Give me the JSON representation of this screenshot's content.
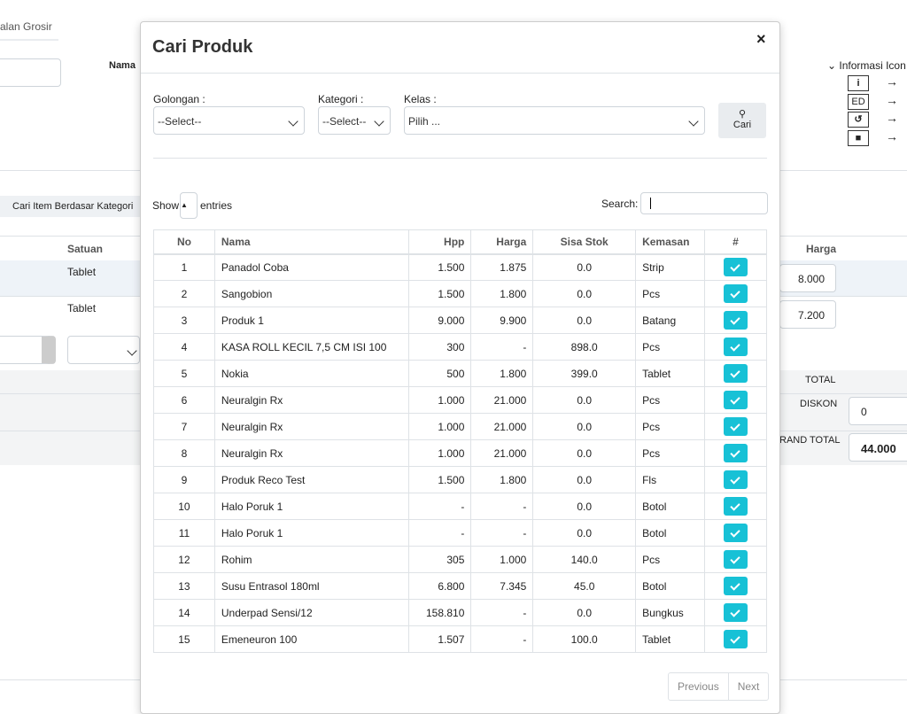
{
  "background": {
    "tab": "alan Grosir",
    "nama_label": "Nama",
    "info_title": "Informasi Icon",
    "icon_ed": "ED",
    "category_button": "Cari Item Berdasar Kategori",
    "columns": {
      "satuan": "Satuan",
      "harga": "Harga"
    },
    "rows": [
      {
        "satuan": "Tablet",
        "harga": "8.000"
      },
      {
        "satuan": "Tablet",
        "harga": "7.200"
      }
    ],
    "totals": {
      "total_label": "TOTAL",
      "diskon_label": "DISKON",
      "diskon_value": "0",
      "grand_total_label": "RAND TOTAL",
      "grand_total_value": "44.000"
    }
  },
  "modal": {
    "title": "Cari Produk",
    "close": "×",
    "filters": {
      "golongan_label": "Golongan :",
      "golongan_value": "--Select--",
      "kategori_label": "Kategori :",
      "kategori_value": "--Select--",
      "kelas_label": "Kelas :",
      "kelas_value": "Pilih ...",
      "search_button": "Cari"
    },
    "show_label": "Show",
    "entries_label": "entries",
    "search_label": "Search:",
    "table": {
      "columns": [
        "No",
        "Nama",
        "Hpp",
        "Harga",
        "Sisa Stok",
        "Kemasan",
        "#"
      ],
      "rows": [
        [
          "1",
          "Panadol Coba",
          "1.500",
          "1.875",
          "0.0",
          "Strip"
        ],
        [
          "2",
          "Sangobion",
          "1.500",
          "1.800",
          "0.0",
          "Pcs"
        ],
        [
          "3",
          "Produk 1",
          "9.000",
          "9.900",
          "0.0",
          "Batang"
        ],
        [
          "4",
          "KASA ROLL KECIL 7,5 CM ISI 100",
          "300",
          "-",
          "898.0",
          "Pcs"
        ],
        [
          "5",
          "Nokia",
          "500",
          "1.800",
          "399.0",
          "Tablet"
        ],
        [
          "6",
          "Neuralgin Rx",
          "1.000",
          "21.000",
          "0.0",
          "Pcs"
        ],
        [
          "7",
          "Neuralgin Rx",
          "1.000",
          "21.000",
          "0.0",
          "Pcs"
        ],
        [
          "8",
          "Neuralgin Rx",
          "1.000",
          "21.000",
          "0.0",
          "Pcs"
        ],
        [
          "9",
          "Produk Reco Test",
          "1.500",
          "1.800",
          "0.0",
          "Fls"
        ],
        [
          "10",
          "Halo Poruk 1",
          "-",
          "-",
          "0.0",
          "Botol"
        ],
        [
          "11",
          "Halo Poruk 1",
          "-",
          "-",
          "0.0",
          "Botol"
        ],
        [
          "12",
          "Rohim",
          "305",
          "1.000",
          "140.0",
          "Pcs"
        ],
        [
          "13",
          "Susu Entrasol 180ml",
          "6.800",
          "7.345",
          "45.0",
          "Botol"
        ],
        [
          "14",
          "Underpad Sensi/12",
          "158.810",
          "-",
          "0.0",
          "Bungkus"
        ],
        [
          "15",
          "Emeneuron 100",
          "1.507",
          "-",
          "100.0",
          "Tablet"
        ]
      ]
    },
    "pagination": {
      "previous": "Previous",
      "next": "Next"
    }
  }
}
